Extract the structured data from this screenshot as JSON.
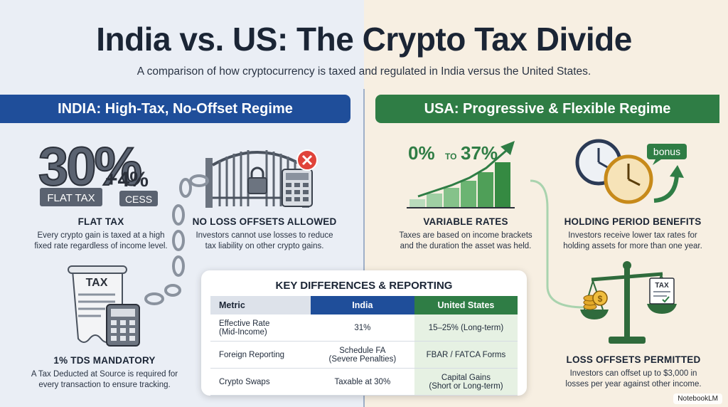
{
  "title": "India vs. US: The Crypto Tax Divide",
  "subtitle": "A comparison of how cryptocurrency is taxed and regulated in India versus the United States.",
  "india": {
    "banner": "INDIA: High-Tax, No-Offset Regime",
    "flat_icon": {
      "big": "30%",
      "plus": "+4%",
      "tag1": "FLAT TAX",
      "tag2": "CESS"
    },
    "flat_tax": {
      "heading": "FLAT TAX",
      "line1": "Every crypto gain is taxed at a high",
      "line2": "fixed rate regardless of income level."
    },
    "no_loss": {
      "heading": "NO LOSS OFFSETS ALLOWED",
      "line1": "Investors cannot use losses to reduce",
      "line2": "tax liability on other crypto gains."
    },
    "tds_icon": {
      "label": "TAX"
    },
    "tds": {
      "heading": "1% TDS MANDATORY",
      "line1": "A Tax Deducted at Source is required for",
      "line2": "every transaction to ensure tracking."
    }
  },
  "usa": {
    "banner": "USA: Progressive & Flexible Regime",
    "rate_icon": {
      "low": "0%",
      "to": "TO",
      "high": "37%"
    },
    "variable": {
      "heading": "VARIABLE RATES",
      "line1": "Taxes are based on income brackets",
      "line2": "and the duration the asset was held."
    },
    "bonus_icon": {
      "label": "bonus"
    },
    "holding": {
      "heading": "HOLDING PERIOD BENEFITS",
      "line1": "Investors receive lower tax rates for",
      "line2": "holding assets for more than one year."
    },
    "scale_icon": {
      "label": "TAX"
    },
    "loss": {
      "heading": "LOSS OFFSETS PERMITTED",
      "line1": "Investors can offset up to $3,000 in",
      "line2": "losses per year against other income."
    }
  },
  "table": {
    "title": "KEY DIFFERENCES & REPORTING",
    "headers": [
      "Metric",
      "India",
      "United States"
    ],
    "rows": [
      {
        "metric": [
          "Effective Rate",
          "(Mid-Income)"
        ],
        "india": [
          "31%"
        ],
        "us": [
          "15–25% (Long-term)"
        ]
      },
      {
        "metric": [
          "Foreign Reporting"
        ],
        "india": [
          "Schedule FA",
          "(Severe Penalties)"
        ],
        "us": [
          "FBAR / FATCA Forms"
        ]
      },
      {
        "metric": [
          "Crypto Swaps"
        ],
        "india": [
          "Taxable at 30%"
        ],
        "us": [
          "Capital Gains",
          "(Short or Long-term)"
        ]
      }
    ]
  },
  "brand": "NotebookLM",
  "colors": {
    "india": "#1f4e9a",
    "usa": "#2f7d45",
    "text": "#1b2535"
  }
}
